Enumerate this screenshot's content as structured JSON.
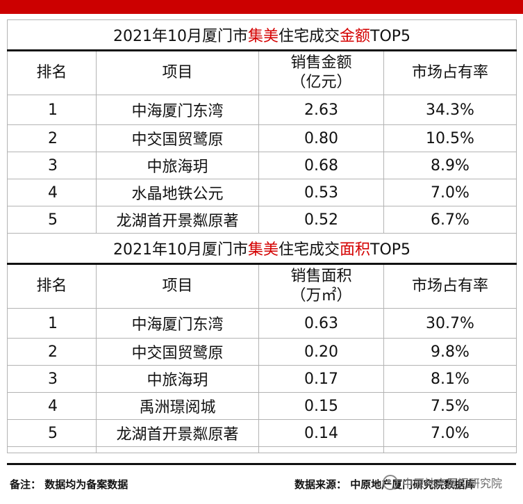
{
  "amount_table": {
    "title_prefix": "2021年10月厦门市",
    "title_district": "集美",
    "title_mid": "住宅成交",
    "title_metric": "金额",
    "title_suffix": "TOP5",
    "headers": {
      "rank": "排名",
      "project": "项目",
      "sales_line1": "销售金额",
      "sales_line2": "（亿元）",
      "share": "市场占有率"
    },
    "rows": [
      {
        "rank": "1",
        "project": "中海厦门东湾",
        "value": "2.63",
        "share": "34.3%"
      },
      {
        "rank": "2",
        "project": "中交国贸鹭原",
        "value": "0.80",
        "share": "10.5%"
      },
      {
        "rank": "3",
        "project": "中旅海玥",
        "value": "0.68",
        "share": "8.9%"
      },
      {
        "rank": "4",
        "project": "水晶地铁公元",
        "value": "0.53",
        "share": "7.0%"
      },
      {
        "rank": "5",
        "project": "龙湖首开景粼原著",
        "value": "0.52",
        "share": "6.7%"
      }
    ]
  },
  "area_table": {
    "title_prefix": "2021年10月厦门市",
    "title_district": "集美",
    "title_mid": "住宅成交",
    "title_metric": "面积",
    "title_suffix": "TOP5",
    "headers": {
      "rank": "排名",
      "project": "项目",
      "sales_line1": "销售面积",
      "sales_line2": "（万㎡）",
      "share": "市场占有率"
    },
    "rows": [
      {
        "rank": "1",
        "project": "中海厦门东湾",
        "value": "0.63",
        "share": "30.7%"
      },
      {
        "rank": "2",
        "project": "中交国贸鹭原",
        "value": "0.20",
        "share": "9.8%"
      },
      {
        "rank": "3",
        "project": "中旅海玥",
        "value": "0.17",
        "share": "8.1%"
      },
      {
        "rank": "4",
        "project": "禹洲璟阅城",
        "value": "0.15",
        "share": "7.5%"
      },
      {
        "rank": "5",
        "project": "龙湖首开景粼原著",
        "value": "0.14",
        "share": "7.0%"
      }
    ]
  },
  "footer": {
    "note": "备注：  数据均为备案数据",
    "source": "数据来源：  中原地产厦门研究院数据库",
    "watermark": "中原地产厦门研究院"
  },
  "colors": {
    "accent_red": "#cc0000",
    "highlight_red": "#d40000"
  }
}
